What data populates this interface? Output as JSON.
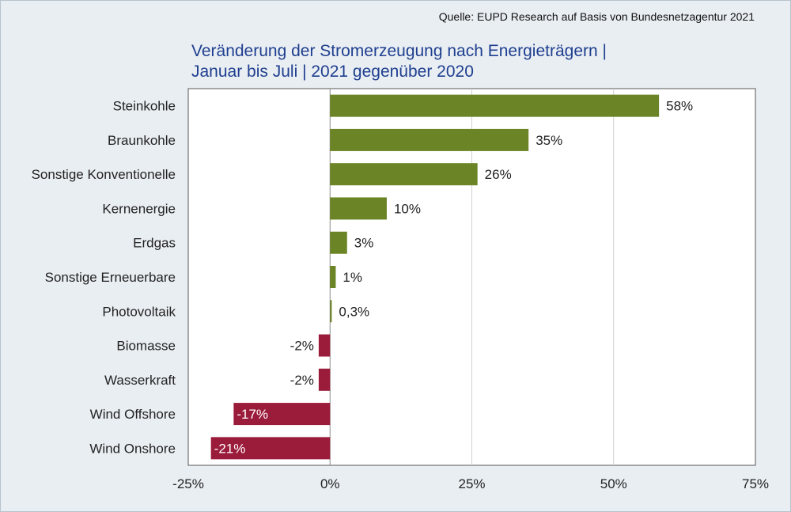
{
  "source": "Quelle: EUPD Research auf Basis von Bundesnetzagentur 2021",
  "title_line1": "Veränderung der Stromerzeugung nach Energieträgern |",
  "title_line2": "Januar bis Juli | 2021 gegenüber 2020",
  "colors": {
    "positive": "#6b8425",
    "negative": "#9b1b3b",
    "grid": "#d0d0d0",
    "axis": "#555555"
  },
  "chart_data": {
    "type": "bar",
    "orientation": "horizontal",
    "title": "Veränderung der Stromerzeugung nach Energieträgern | Januar bis Juli | 2021 gegenüber 2020",
    "categories": [
      "Steinkohle",
      "Braunkohle",
      "Sonstige Konventionelle",
      "Kernenergie",
      "Erdgas",
      "Sonstige Erneuerbare",
      "Photovoltaik",
      "Biomasse",
      "Wasserkraft",
      "Wind Offshore",
      "Wind Onshore"
    ],
    "values": [
      58,
      35,
      26,
      10,
      3,
      1,
      0.3,
      -2,
      -2,
      -17,
      -21
    ],
    "data_labels": [
      "58%",
      "35%",
      "26%",
      "10%",
      "3%",
      "1%",
      "0,3%",
      "-2%",
      "-2%",
      "-17%",
      "-21%"
    ],
    "xlim": [
      -25,
      75
    ],
    "xticks": [
      -25,
      0,
      25,
      50,
      75
    ],
    "xtick_labels": [
      "-25%",
      "0%",
      "25%",
      "50%",
      "75%"
    ],
    "xlabel": "",
    "ylabel": "",
    "grid": true,
    "legend": "none"
  }
}
